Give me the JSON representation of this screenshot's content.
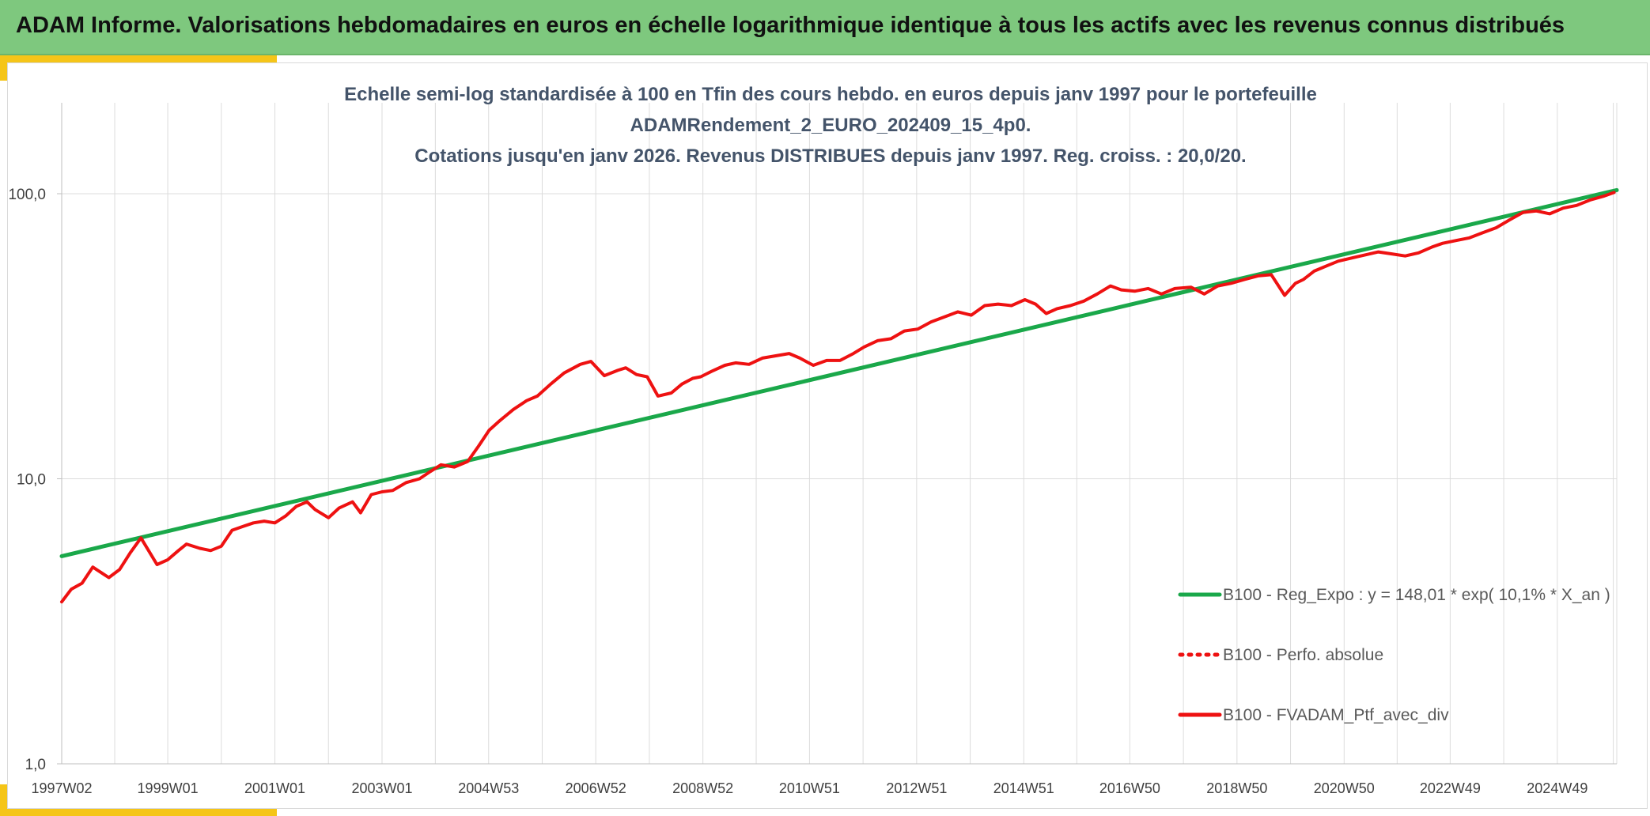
{
  "banner": {
    "title": "ADAM Informe. Valorisations hebdomadaires en euros en échelle logarithmique identique à tous les actifs avec les revenus connus distribués"
  },
  "colors": {
    "banner_bg": "#7ec87e",
    "accent": "#f5c518",
    "regression": "#1aa84a",
    "series": "#ee1111",
    "title_text": "#44546a"
  },
  "chart_data": {
    "type": "line",
    "title_lines": [
      "Echelle semi-log standardisée à 100 en Tfin des cours hebdo. en euros depuis janv 1997 pour le portefeuille",
      "ADAMRendement_2_EURO_202409_15_4p0.",
      "Cotations jusqu'en janv 2026. Revenus DISTRIBUES depuis janv 1997. Reg. croiss. : 20,0/20."
    ],
    "y_scale": "log",
    "ylim": [
      1,
      200
    ],
    "y_ticks": [
      {
        "value": 1,
        "label": "1,0"
      },
      {
        "value": 10,
        "label": "10,0"
      },
      {
        "value": 100,
        "label": "100,0"
      }
    ],
    "xlim": [
      1997.02,
      2026.05
    ],
    "x_ticks": [
      {
        "value": 1997.02,
        "label": "1997W02"
      },
      {
        "value": 1999.0,
        "label": "1999W01"
      },
      {
        "value": 2001.0,
        "label": "2001W01"
      },
      {
        "value": 2003.0,
        "label": "2003W01"
      },
      {
        "value": 2004.99,
        "label": "2004W53"
      },
      {
        "value": 2006.99,
        "label": "2006W52"
      },
      {
        "value": 2008.99,
        "label": "2008W52"
      },
      {
        "value": 2010.98,
        "label": "2010W51"
      },
      {
        "value": 2012.98,
        "label": "2012W51"
      },
      {
        "value": 2014.98,
        "label": "2014W51"
      },
      {
        "value": 2016.96,
        "label": "2016W50"
      },
      {
        "value": 2018.96,
        "label": "2018W50"
      },
      {
        "value": 2020.96,
        "label": "2020W50"
      },
      {
        "value": 2022.94,
        "label": "2022W49"
      },
      {
        "value": 2024.94,
        "label": "2024W49"
      }
    ],
    "grid": {
      "vertical": true,
      "horizontal": true
    },
    "legend_position": "bottom-right",
    "series": [
      {
        "name": "B100 - Reg_Expo : y = 148,01 * exp( 10,1% *  X_an )",
        "color": "#1aa84a",
        "style": "solid",
        "x": [
          1997.02,
          2026.05
        ],
        "y": [
          5.35,
          103
        ]
      },
      {
        "name": "B100 - Perfo. absolue",
        "color": "#ee1111",
        "style": "dotted",
        "x": [],
        "y": []
      },
      {
        "name": "B100 - FVADAM_Ptf_avec_div",
        "color": "#ee1111",
        "style": "solid",
        "x": [
          1997.02,
          1997.2,
          1997.4,
          1997.6,
          1997.9,
          1998.1,
          1998.3,
          1998.5,
          1998.8,
          1999.0,
          1999.2,
          1999.35,
          1999.6,
          1999.8,
          2000.0,
          2000.2,
          2000.4,
          2000.6,
          2000.8,
          2001.0,
          2001.2,
          2001.4,
          2001.6,
          2001.75,
          2002.0,
          2002.2,
          2002.45,
          2002.6,
          2002.8,
          2003.0,
          2003.2,
          2003.45,
          2003.7,
          2003.9,
          2004.1,
          2004.35,
          2004.6,
          2004.8,
          2005.0,
          2005.2,
          2005.45,
          2005.7,
          2005.9,
          2006.15,
          2006.4,
          2006.7,
          2006.9,
          2007.15,
          2007.4,
          2007.55,
          2007.75,
          2007.95,
          2008.15,
          2008.4,
          2008.6,
          2008.8,
          2008.95,
          2009.15,
          2009.4,
          2009.6,
          2009.85,
          2010.1,
          2010.35,
          2010.6,
          2010.8,
          2011.05,
          2011.3,
          2011.55,
          2011.8,
          2012.0,
          2012.25,
          2012.5,
          2012.75,
          2013.0,
          2013.25,
          2013.5,
          2013.75,
          2014.0,
          2014.25,
          2014.5,
          2014.75,
          2015.0,
          2015.2,
          2015.4,
          2015.6,
          2015.85,
          2016.1,
          2016.35,
          2016.6,
          2016.8,
          2017.05,
          2017.3,
          2017.55,
          2017.8,
          2018.1,
          2018.35,
          2018.6,
          2018.85,
          2019.1,
          2019.35,
          2019.6,
          2019.85,
          2020.05,
          2020.2,
          2020.4,
          2020.65,
          2020.85,
          2021.1,
          2021.35,
          2021.6,
          2021.85,
          2022.1,
          2022.35,
          2022.6,
          2022.8,
          2023.05,
          2023.3,
          2023.55,
          2023.8,
          2024.05,
          2024.3,
          2024.55,
          2024.8,
          2025.05,
          2025.3,
          2025.55,
          2025.8,
          2026.0
        ],
        "y": [
          3.7,
          4.1,
          4.3,
          4.9,
          4.5,
          4.8,
          5.5,
          6.2,
          5.0,
          5.2,
          5.6,
          5.9,
          5.7,
          5.6,
          5.8,
          6.6,
          6.8,
          7.0,
          7.1,
          7.0,
          7.4,
          8.0,
          8.3,
          7.8,
          7.3,
          7.9,
          8.3,
          7.6,
          8.8,
          9.0,
          9.1,
          9.7,
          10.0,
          10.6,
          11.2,
          11.0,
          11.5,
          13.0,
          14.8,
          16.0,
          17.5,
          18.8,
          19.5,
          21.5,
          23.5,
          25.2,
          25.8,
          23.0,
          24.0,
          24.5,
          23.2,
          22.8,
          19.5,
          20.0,
          21.5,
          22.5,
          22.8,
          23.8,
          25.0,
          25.5,
          25.2,
          26.5,
          27.0,
          27.5,
          26.5,
          25.0,
          26.0,
          26.0,
          27.5,
          29.0,
          30.5,
          31.0,
          33.0,
          33.5,
          35.5,
          37.0,
          38.5,
          37.5,
          40.5,
          41.0,
          40.5,
          42.5,
          41.0,
          38.0,
          39.5,
          40.5,
          42.0,
          44.5,
          47.5,
          46.0,
          45.5,
          46.5,
          44.5,
          46.5,
          47.0,
          44.5,
          47.5,
          48.5,
          50.0,
          51.5,
          52.0,
          44.0,
          48.5,
          50.0,
          53.5,
          56.0,
          58.0,
          59.5,
          61.0,
          62.5,
          61.5,
          60.5,
          62.0,
          65.0,
          67.0,
          68.5,
          70.0,
          73.0,
          76.0,
          81.0,
          86.0,
          87.0,
          85.0,
          89.0,
          91.0,
          95.0,
          98.0,
          101.0
        ]
      }
    ]
  }
}
